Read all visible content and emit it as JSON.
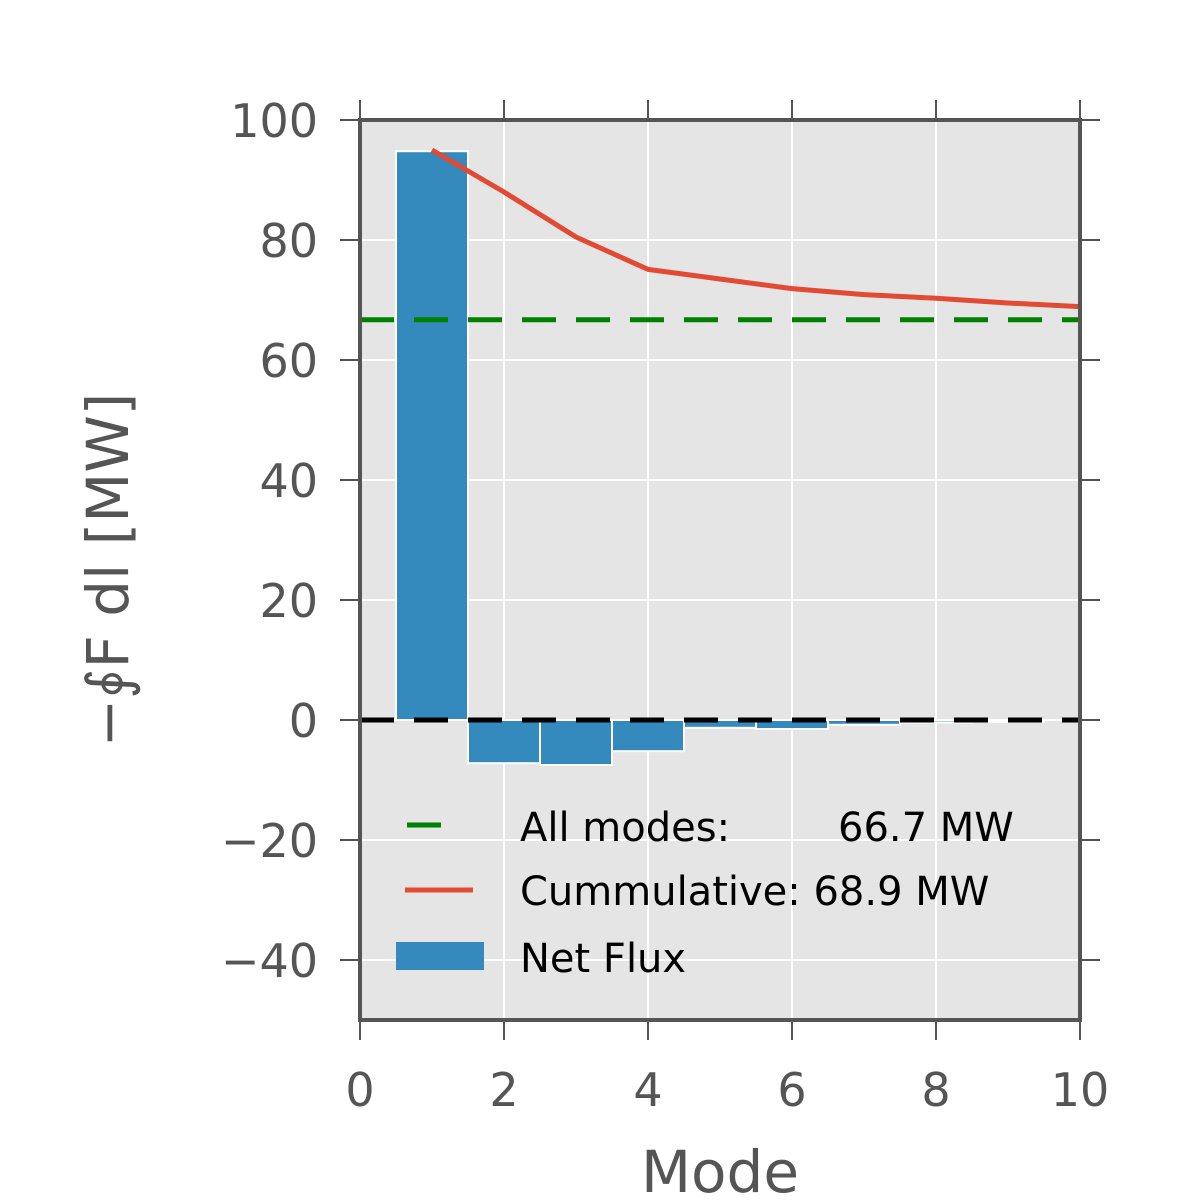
{
  "chart_data": {
    "type": "bar",
    "title": "",
    "xlabel": "Mode",
    "ylabel": "−∮F dl [MW]",
    "xlim": [
      0,
      10
    ],
    "ylim": [
      -50,
      100
    ],
    "x_ticks": [
      0,
      2,
      4,
      6,
      8,
      10
    ],
    "x_tick_labels": [
      "0",
      "2",
      "4",
      "6",
      "8",
      "10"
    ],
    "y_ticks": [
      -40,
      -20,
      0,
      20,
      40,
      60,
      80,
      100
    ],
    "y_tick_labels": [
      "−40",
      "−20",
      "0",
      "20",
      "40",
      "60",
      "80",
      "100"
    ],
    "grid": true,
    "legend_position": "lower-right",
    "colors": {
      "background": "#e5e5e5",
      "bars": "#348abd",
      "cumulative": "#e24a33",
      "all_modes": "#008000",
      "zero_line": "#000000",
      "axes": "#555555",
      "grid": "#ffffff"
    },
    "bars": {
      "name": "Net Flux",
      "x": [
        1,
        2,
        3,
        4,
        5,
        6,
        7,
        8,
        9
      ],
      "values": [
        94.8,
        -7.2,
        -7.5,
        -5.2,
        -1.3,
        -1.5,
        -0.8,
        -0.4,
        -0.3
      ]
    },
    "cumulative": {
      "name": "Cummulative: 68.9 MW",
      "x": [
        1,
        2,
        3,
        4,
        5,
        6,
        7,
        8,
        9,
        10
      ],
      "values": [
        95.0,
        88.0,
        80.5,
        75.1,
        73.5,
        71.9,
        70.9,
        70.3,
        69.5,
        68.9
      ]
    },
    "all_modes": {
      "name_label": "All modes:",
      "name_value": "66.7 MW",
      "value": 66.7
    },
    "zero_line": {
      "value": 0
    }
  }
}
